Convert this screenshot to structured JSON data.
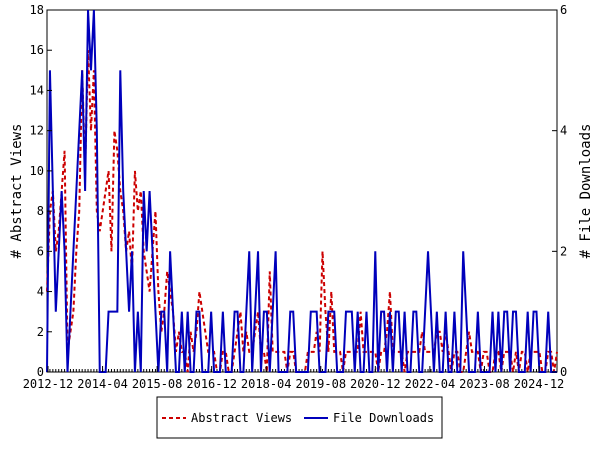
{
  "chart_data": {
    "type": "line",
    "ylabel_left": "# Abstract Views",
    "ylabel_right": "# File Downloads",
    "ylim_left": [
      0,
      18
    ],
    "ylim_right": [
      0,
      6
    ],
    "yticks_left": [
      "0",
      "2",
      "4",
      "6",
      "8",
      "10",
      "12",
      "14",
      "16",
      "18"
    ],
    "yticks_right": [
      "0",
      "2",
      "4",
      "6"
    ],
    "xticks": [
      "2012-12",
      "2014-04",
      "2015-08",
      "2016-12",
      "2018-04",
      "2019-08",
      "2020-12",
      "2022-04",
      "2023-08",
      "2024-12"
    ],
    "legend_position": "bottom",
    "series": [
      {
        "name": "Abstract Views",
        "axis": "left",
        "color": "#cc0000",
        "style": "dashed",
        "values": [
          4,
          8,
          9,
          6,
          7,
          9,
          11,
          1,
          2,
          3,
          6,
          8,
          15,
          10,
          16,
          12,
          15,
          8,
          7,
          8,
          9,
          10,
          6,
          12,
          11,
          9,
          8,
          6,
          7,
          5,
          10,
          8,
          9,
          6,
          5,
          4,
          6,
          8,
          4,
          2,
          3,
          5,
          4,
          3,
          1,
          2,
          1,
          1,
          0,
          2,
          1,
          2,
          4,
          3,
          2,
          1,
          1,
          1,
          0,
          0,
          1,
          1,
          0,
          0,
          1,
          2,
          3,
          1,
          2,
          1,
          1,
          2,
          3,
          1,
          1,
          0,
          5,
          1,
          1,
          1,
          1,
          1,
          0,
          1,
          1,
          0,
          0,
          0,
          0,
          1,
          1,
          1,
          2,
          1,
          6,
          3,
          1,
          4,
          1,
          1,
          1,
          0,
          1,
          1,
          1,
          1,
          1,
          3,
          1,
          1,
          1,
          1,
          1,
          0,
          1,
          1,
          2,
          4,
          1,
          1,
          1,
          1,
          0,
          1,
          1,
          1,
          1,
          1,
          2,
          1,
          1,
          1,
          1,
          2,
          2,
          1,
          2,
          1,
          0,
          1,
          1,
          0,
          0,
          1,
          2,
          1,
          1,
          1,
          0,
          1,
          1,
          0,
          0,
          1,
          1,
          0,
          1,
          1,
          1,
          0,
          1,
          0,
          1,
          1,
          0,
          1,
          1,
          1,
          1,
          0,
          0,
          1,
          1,
          0,
          1
        ]
      },
      {
        "name": "File Downloads",
        "axis": "right",
        "color": "#0000bb",
        "style": "solid",
        "values": [
          0,
          5,
          3,
          1,
          2,
          3,
          2,
          0,
          1,
          2,
          3,
          4,
          5,
          3,
          6,
          5,
          6,
          4,
          0,
          0,
          0,
          1,
          1,
          1,
          1,
          5,
          3,
          2,
          1,
          2,
          0,
          1,
          0,
          3,
          2,
          3,
          2,
          1,
          0,
          1,
          1,
          0,
          2,
          1,
          0,
          0,
          1,
          0,
          1,
          0,
          0,
          1,
          1,
          0,
          0,
          0,
          1,
          0,
          0,
          0,
          1,
          0,
          0,
          0,
          1,
          1,
          0,
          0,
          1,
          2,
          0,
          1,
          2,
          0,
          1,
          1,
          0,
          1,
          2,
          0,
          0,
          0,
          0,
          1,
          1,
          0,
          0,
          0,
          0,
          0,
          1,
          1,
          1,
          0,
          0,
          0,
          1,
          1,
          1,
          0,
          0,
          0,
          1,
          1,
          1,
          0,
          1,
          0,
          0,
          1,
          0,
          0,
          2,
          0,
          1,
          1,
          0,
          1,
          0,
          1,
          1,
          0,
          1,
          0,
          0,
          1,
          1,
          0,
          0,
          1,
          2,
          1,
          0,
          1,
          0,
          0,
          1,
          0,
          0,
          1,
          0,
          0,
          2,
          1,
          0,
          0,
          0,
          1,
          0,
          0,
          0,
          0,
          1,
          0,
          1,
          0,
          1,
          1,
          0,
          1,
          1,
          0,
          0,
          0,
          1,
          0,
          1,
          1,
          0,
          0,
          0,
          1,
          0,
          0,
          0
        ]
      }
    ]
  }
}
